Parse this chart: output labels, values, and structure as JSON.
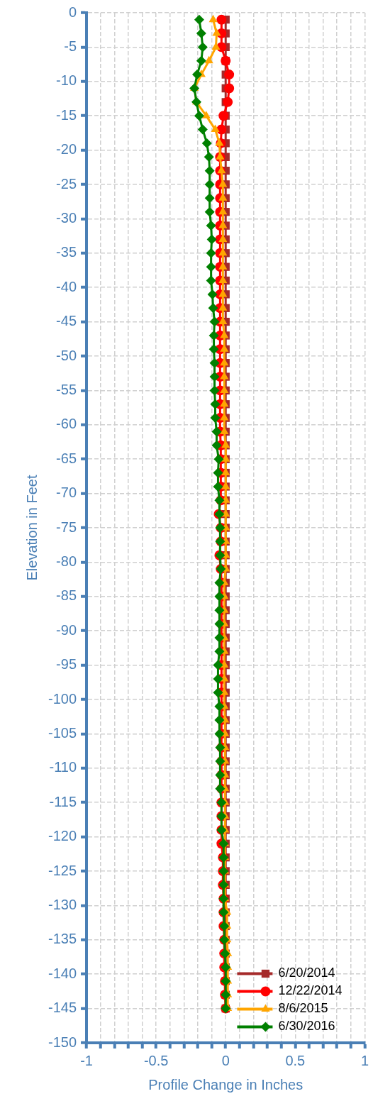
{
  "chart_data": {
    "type": "line",
    "orientation": "horizontal",
    "xlabel": "Profile Change in Inches",
    "ylabel": "Elevation in Feet",
    "x": [
      -1,
      -3,
      -5,
      -7,
      -9,
      -11,
      -13,
      -15,
      -17,
      -19,
      -21,
      -23,
      -25,
      -27,
      -29,
      -31,
      -33,
      -35,
      -37,
      -39,
      -41,
      -43,
      -45,
      -47,
      -49,
      -51,
      -53,
      -55,
      -57,
      -59,
      -61,
      -63,
      -65,
      -67,
      -69,
      -71,
      -73,
      -75,
      -77,
      -79,
      -81,
      -83,
      -85,
      -87,
      -89,
      -91,
      -93,
      -95,
      -97,
      -99,
      -101,
      -103,
      -105,
      -107,
      -109,
      -111,
      -113,
      -115,
      -117,
      -119,
      -121,
      -123,
      -125,
      -127,
      -129,
      -131,
      -133,
      -135,
      -137,
      -139,
      -141,
      -143,
      -145
    ],
    "series": [
      {
        "name": "6/20/2014",
        "color": "#a52a2a",
        "marker": "square",
        "values": [
          0,
          0,
          0,
          0,
          0,
          0,
          0,
          0,
          0,
          0,
          0,
          0,
          0,
          0,
          0,
          0,
          0,
          0,
          0,
          0,
          0,
          0,
          0,
          0,
          0,
          0,
          0,
          0,
          0,
          0,
          0,
          0,
          0,
          0,
          0,
          0,
          0,
          0,
          0,
          0,
          0,
          0,
          0,
          0,
          0,
          0,
          0,
          0,
          0,
          0,
          0,
          0,
          0,
          0,
          0,
          0,
          0,
          0,
          0,
          0,
          0,
          0,
          0,
          0,
          0,
          0,
          0,
          0,
          0,
          0,
          0,
          0,
          0
        ]
      },
      {
        "name": "12/22/2014",
        "color": "#ff0000",
        "marker": "circle",
        "values": [
          -0.03,
          -0.03,
          -0.03,
          0,
          0.025,
          0.025,
          0.015,
          -0.015,
          -0.03,
          -0.035,
          -0.04,
          -0.04,
          -0.04,
          -0.04,
          -0.04,
          -0.04,
          -0.04,
          -0.04,
          -0.04,
          -0.04,
          -0.04,
          -0.04,
          -0.04,
          -0.04,
          -0.04,
          -0.04,
          -0.04,
          -0.04,
          -0.04,
          -0.04,
          -0.04,
          -0.035,
          -0.035,
          -0.035,
          -0.035,
          -0.035,
          -0.05,
          -0.035,
          -0.035,
          -0.045,
          -0.035,
          -0.03,
          -0.03,
          -0.03,
          -0.03,
          -0.03,
          -0.03,
          -0.03,
          -0.03,
          -0.03,
          -0.03,
          -0.03,
          -0.03,
          -0.03,
          -0.03,
          -0.03,
          -0.03,
          -0.03,
          -0.03,
          -0.03,
          -0.03,
          -0.02,
          -0.02,
          -0.02,
          -0.015,
          -0.015,
          -0.015,
          -0.01,
          -0.01,
          -0.01,
          -0.005,
          -0.005,
          0
        ]
      },
      {
        "name": "8/6/2015",
        "color": "#ffa500",
        "marker": "triangle",
        "values": [
          -0.09,
          -0.065,
          -0.07,
          -0.12,
          -0.175,
          -0.225,
          -0.21,
          -0.14,
          -0.075,
          -0.045,
          -0.04,
          -0.03,
          -0.02,
          -0.02,
          -0.02,
          -0.02,
          -0.02,
          -0.02,
          -0.02,
          -0.02,
          -0.02,
          -0.02,
          -0.02,
          -0.01,
          -0.01,
          -0.01,
          -0.01,
          -0.01,
          -0.01,
          -0.01,
          -0.01,
          0,
          0,
          0,
          0,
          0,
          0,
          0,
          0,
          0,
          0,
          -0.01,
          -0.01,
          -0.01,
          -0.01,
          -0.01,
          -0.01,
          -0.01,
          -0.01,
          -0.01,
          -0.01,
          -0.005,
          -0.005,
          -0.005,
          -0.005,
          -0.005,
          -0.005,
          -0.005,
          -0.005,
          -0.005,
          -0.005,
          -0.005,
          -0.005,
          -0.005,
          -0.005,
          0.01,
          0.01,
          0.01,
          0.015,
          0.015,
          0.015,
          0.015,
          0.015
        ]
      },
      {
        "name": "6/30/2016",
        "color": "#008000",
        "marker": "diamond",
        "values": [
          -0.19,
          -0.175,
          -0.165,
          -0.175,
          -0.205,
          -0.225,
          -0.21,
          -0.19,
          -0.165,
          -0.135,
          -0.12,
          -0.115,
          -0.115,
          -0.115,
          -0.115,
          -0.105,
          -0.1,
          -0.105,
          -0.105,
          -0.105,
          -0.095,
          -0.09,
          -0.08,
          -0.085,
          -0.085,
          -0.08,
          -0.08,
          -0.08,
          -0.075,
          -0.075,
          -0.065,
          -0.065,
          -0.05,
          -0.055,
          -0.055,
          -0.045,
          -0.045,
          -0.04,
          -0.04,
          -0.04,
          -0.035,
          -0.045,
          -0.045,
          -0.045,
          -0.045,
          -0.045,
          -0.045,
          -0.055,
          -0.055,
          -0.055,
          -0.045,
          -0.045,
          -0.045,
          -0.04,
          -0.04,
          -0.04,
          -0.04,
          -0.03,
          -0.03,
          -0.03,
          -0.015,
          -0.015,
          -0.015,
          -0.015,
          -0.015,
          -0.015,
          -0.01,
          -0.01,
          -0.005,
          0,
          0,
          0,
          0
        ]
      }
    ],
    "xlim": [
      -1,
      1
    ],
    "xticks": [
      -1,
      {
        "value": -0.9,
        "label": null
      },
      {
        "value": -0.8,
        "label": null
      },
      {
        "value": -0.7,
        "label": null
      },
      {
        "value": -0.6,
        "label": null
      },
      -0.5,
      {
        "value": -0.4,
        "label": null
      },
      {
        "value": -0.3,
        "label": null
      },
      {
        "value": -0.2,
        "label": null
      },
      {
        "value": -0.1,
        "label": null
      },
      0,
      {
        "value": 0.1,
        "label": null
      },
      {
        "value": 0.2,
        "label": null
      },
      {
        "value": 0.3,
        "label": null
      },
      {
        "value": 0.4,
        "label": null
      },
      0.5,
      {
        "value": 0.6,
        "label": null
      },
      {
        "value": 0.7,
        "label": null
      },
      {
        "value": 0.8,
        "label": null
      },
      {
        "value": 0.9,
        "label": null
      },
      1
    ],
    "ylim": [
      -150,
      0
    ],
    "yticks": [
      0,
      -5,
      -10,
      -15,
      -20,
      -25,
      -30,
      -35,
      -40,
      -45,
      -50,
      -55,
      -60,
      -65,
      -70,
      -75,
      -80,
      -85,
      -90,
      -95,
      -100,
      -105,
      -110,
      -115,
      -120,
      -125,
      -130,
      -135,
      -140,
      -145,
      -150
    ],
    "grid": true,
    "legend": "bottom right",
    "line_style": "solid"
  }
}
